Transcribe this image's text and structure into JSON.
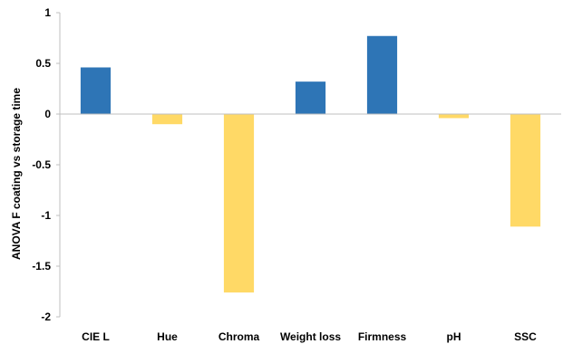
{
  "chart_data": {
    "type": "bar",
    "title": "",
    "xlabel": "",
    "ylabel": "ANOVA F coating vs storage time",
    "categories": [
      "CIE L",
      "Hue",
      "Chroma",
      "Weight loss",
      "Firmness",
      "pH",
      "SSC"
    ],
    "values": [
      0.46,
      -0.1,
      -1.76,
      0.32,
      0.77,
      -0.04,
      -1.11
    ],
    "ylim": [
      -2,
      1
    ],
    "yticks": [
      1,
      0.5,
      0,
      -0.5,
      -1,
      -1.5,
      -2
    ],
    "ytick_labels": [
      "1",
      "0.5",
      "0",
      "-0.5",
      "-1",
      "-1.5",
      "-2"
    ],
    "grid": false,
    "legend": "none",
    "colors": {
      "positive": "#2E75B6",
      "negative": "#FFD966",
      "axis": "#BFBFBF"
    }
  }
}
